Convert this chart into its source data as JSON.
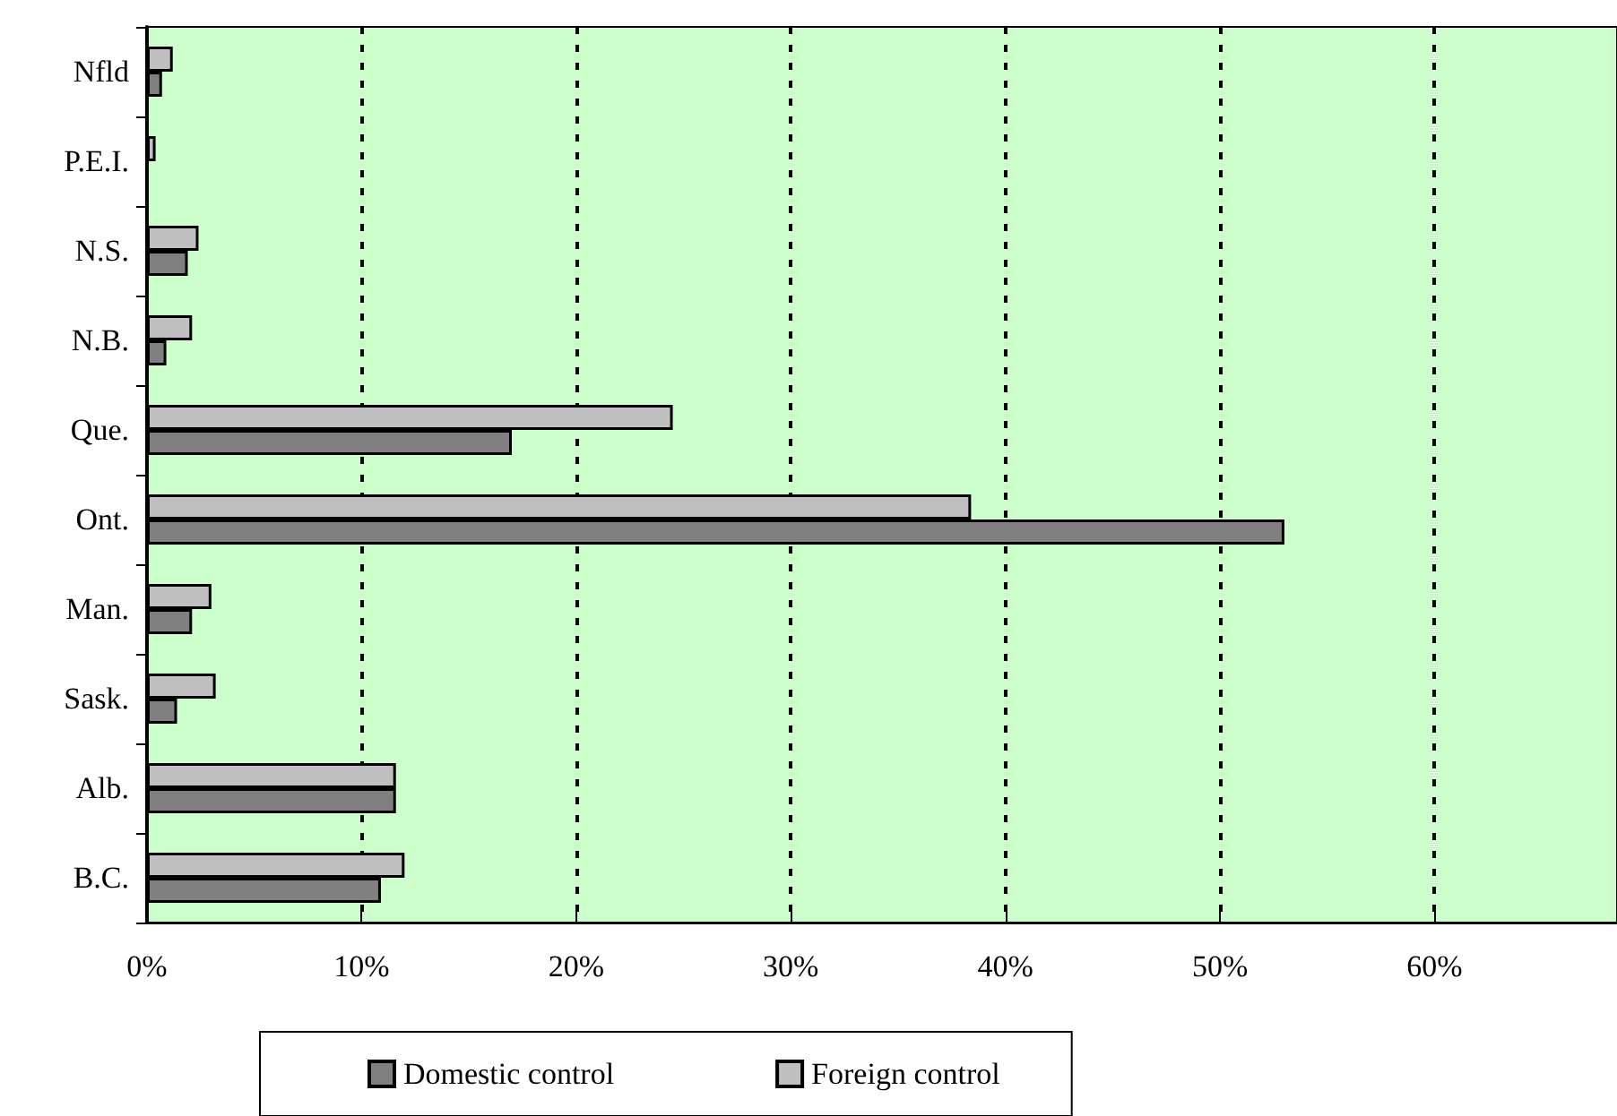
{
  "chart_data": {
    "type": "bar",
    "orientation": "horizontal",
    "categories": [
      "Nfld",
      "P.E.I.",
      "N.S.",
      "N.B.",
      "Que.",
      "Ont.",
      "Man.",
      "Sask.",
      "Alb.",
      "B.C."
    ],
    "series": [
      {
        "name": "Domestic control",
        "color": "#808080",
        "values": [
          0.7,
          null,
          1.9,
          0.9,
          17.0,
          53.0,
          2.1,
          1.4,
          11.6,
          10.9
        ]
      },
      {
        "name": "Foreign control",
        "color": "#c0c0c0",
        "values": [
          1.2,
          0.4,
          2.4,
          2.1,
          24.5,
          38.4,
          3.0,
          3.2,
          11.6,
          12.0
        ]
      }
    ],
    "xlim": [
      0,
      68.5
    ],
    "xticks": [
      {
        "value": 0,
        "label": "0%"
      },
      {
        "value": 10,
        "label": "10%"
      },
      {
        "value": 20,
        "label": "20%"
      },
      {
        "value": 30,
        "label": "30%"
      },
      {
        "value": 40,
        "label": "40%"
      },
      {
        "value": 50,
        "label": "50%"
      },
      {
        "value": 60,
        "label": "60%"
      }
    ],
    "grid": "x",
    "legend": "bottom"
  }
}
